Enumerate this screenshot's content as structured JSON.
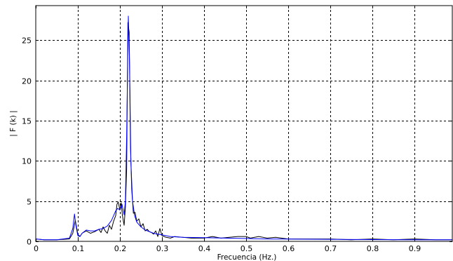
{
  "chart_data": {
    "type": "line",
    "xlabel": "Frecuencia (Hz.)",
    "ylabel": "| F (k) |",
    "xlim": [
      0,
      0.99
    ],
    "ylim": [
      0,
      29.3
    ],
    "grid": true,
    "x_ticks": [
      0,
      0.1,
      0.2,
      0.3,
      0.4,
      0.5,
      0.6,
      0.7,
      0.8,
      0.9
    ],
    "x_tick_labels": [
      "0",
      "0.1",
      "0.2",
      "0.3",
      "0.4",
      "0.5",
      "0.6",
      "0.7",
      "0.8",
      "0.9"
    ],
    "y_ticks": [
      0,
      5,
      10,
      15,
      20,
      25
    ],
    "y_tick_labels": [
      "0",
      "5",
      "10",
      "15",
      "20",
      "25"
    ],
    "series": [
      {
        "color": "#000000",
        "x": [
          0,
          0.02,
          0.05,
          0.08,
          0.088,
          0.094,
          0.1,
          0.105,
          0.11,
          0.12,
          0.13,
          0.14,
          0.15,
          0.155,
          0.16,
          0.165,
          0.17,
          0.175,
          0.18,
          0.185,
          0.19,
          0.193,
          0.196,
          0.2,
          0.203,
          0.206,
          0.21,
          0.213,
          0.216,
          0.219,
          0.222,
          0.225,
          0.228,
          0.232,
          0.236,
          0.24,
          0.245,
          0.25,
          0.255,
          0.26,
          0.265,
          0.27,
          0.275,
          0.28,
          0.285,
          0.29,
          0.295,
          0.3,
          0.31,
          0.32,
          0.33,
          0.35,
          0.37,
          0.4,
          0.42,
          0.44,
          0.46,
          0.48,
          0.5,
          0.51,
          0.53,
          0.55,
          0.57,
          0.6,
          0.65,
          0.7,
          0.75,
          0.8,
          0.85,
          0.9,
          0.95,
          0.99
        ],
        "y": [
          0.3,
          0.2,
          0.2,
          0.3,
          1.0,
          2.6,
          0.9,
          0.6,
          1.0,
          1.3,
          1.0,
          1.2,
          1.5,
          1.1,
          1.8,
          1.3,
          1.0,
          2.0,
          1.5,
          2.5,
          3.2,
          4.6,
          4.9,
          3.9,
          4.8,
          3.2,
          2.0,
          4.2,
          9.0,
          27.2,
          26.0,
          12.0,
          6.5,
          3.5,
          3.6,
          2.5,
          2.8,
          1.8,
          2.2,
          1.3,
          1.5,
          1.2,
          1.1,
          0.9,
          1.3,
          0.6,
          1.6,
          0.7,
          0.5,
          0.4,
          0.6,
          0.5,
          0.4,
          0.4,
          0.6,
          0.4,
          0.5,
          0.6,
          0.6,
          0.4,
          0.6,
          0.4,
          0.5,
          0.3,
          0.3,
          0.3,
          0.2,
          0.3,
          0.2,
          0.3,
          0.2,
          0.2
        ]
      },
      {
        "color": "#0000ff",
        "x": [
          0,
          0.02,
          0.05,
          0.08,
          0.088,
          0.092,
          0.096,
          0.1,
          0.105,
          0.11,
          0.12,
          0.13,
          0.14,
          0.15,
          0.16,
          0.17,
          0.18,
          0.19,
          0.195,
          0.2,
          0.205,
          0.21,
          0.213,
          0.216,
          0.22,
          0.223,
          0.226,
          0.23,
          0.235,
          0.24,
          0.25,
          0.26,
          0.27,
          0.28,
          0.29,
          0.3,
          0.32,
          0.35,
          0.4,
          0.45,
          0.5,
          0.55,
          0.6,
          0.7,
          0.8,
          0.9,
          0.99
        ],
        "y": [
          0.3,
          0.2,
          0.2,
          0.4,
          1.6,
          3.4,
          1.8,
          0.7,
          0.6,
          1.0,
          1.4,
          1.3,
          1.3,
          1.5,
          1.6,
          1.9,
          2.6,
          3.8,
          4.1,
          3.9,
          4.6,
          3.3,
          5.0,
          13.0,
          28.0,
          22.0,
          10.0,
          5.0,
          3.2,
          2.4,
          1.8,
          1.4,
          1.2,
          1.0,
          0.9,
          0.8,
          0.6,
          0.5,
          0.45,
          0.4,
          0.35,
          0.3,
          0.28,
          0.25,
          0.22,
          0.2,
          0.2
        ]
      }
    ]
  }
}
